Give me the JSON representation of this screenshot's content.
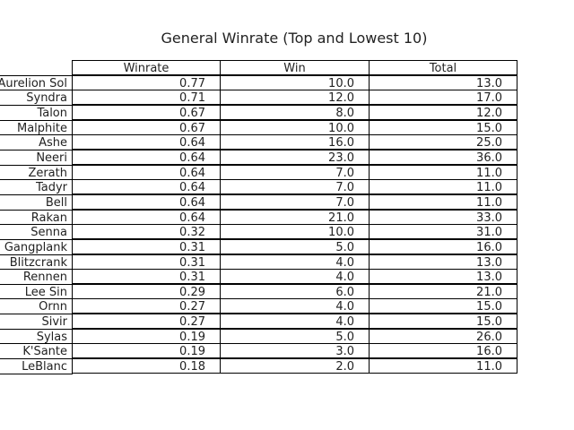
{
  "chart_data": {
    "type": "table",
    "title": "General Winrate (Top and Lowest 10)",
    "columns": [
      "Winrate",
      "Win",
      "Total"
    ],
    "rows": [
      {
        "label": "Aurelion Sol",
        "winrate": "0.77",
        "win": "10.0",
        "total": "13.0"
      },
      {
        "label": "Syndra",
        "winrate": "0.71",
        "win": "12.0",
        "total": "17.0"
      },
      {
        "label": "Talon",
        "winrate": "0.67",
        "win": "8.0",
        "total": "12.0"
      },
      {
        "label": "Malphite",
        "winrate": "0.67",
        "win": "10.0",
        "total": "15.0"
      },
      {
        "label": "Ashe",
        "winrate": "0.64",
        "win": "16.0",
        "total": "25.0"
      },
      {
        "label": "Neeri",
        "winrate": "0.64",
        "win": "23.0",
        "total": "36.0"
      },
      {
        "label": "Zerath",
        "winrate": "0.64",
        "win": "7.0",
        "total": "11.0"
      },
      {
        "label": "Tadyr",
        "winrate": "0.64",
        "win": "7.0",
        "total": "11.0"
      },
      {
        "label": "Bell",
        "winrate": "0.64",
        "win": "7.0",
        "total": "11.0"
      },
      {
        "label": "Rakan",
        "winrate": "0.64",
        "win": "21.0",
        "total": "33.0"
      },
      {
        "label": "Senna",
        "winrate": "0.32",
        "win": "10.0",
        "total": "31.0"
      },
      {
        "label": "Gangplank",
        "winrate": "0.31",
        "win": "5.0",
        "total": "16.0"
      },
      {
        "label": "Blitzcrank",
        "winrate": "0.31",
        "win": "4.0",
        "total": "13.0"
      },
      {
        "label": "Rennen",
        "winrate": "0.31",
        "win": "4.0",
        "total": "13.0"
      },
      {
        "label": "Lee Sin",
        "winrate": "0.29",
        "win": "6.0",
        "total": "21.0"
      },
      {
        "label": "Ornn",
        "winrate": "0.27",
        "win": "4.0",
        "total": "15.0"
      },
      {
        "label": "Sivir",
        "winrate": "0.27",
        "win": "4.0",
        "total": "15.0"
      },
      {
        "label": "Sylas",
        "winrate": "0.19",
        "win": "5.0",
        "total": "26.0"
      },
      {
        "label": "K'Sante",
        "winrate": "0.19",
        "win": "3.0",
        "total": "16.0"
      },
      {
        "label": "LeBlanc",
        "winrate": "0.18",
        "win": "2.0",
        "total": "11.0"
      }
    ]
  }
}
